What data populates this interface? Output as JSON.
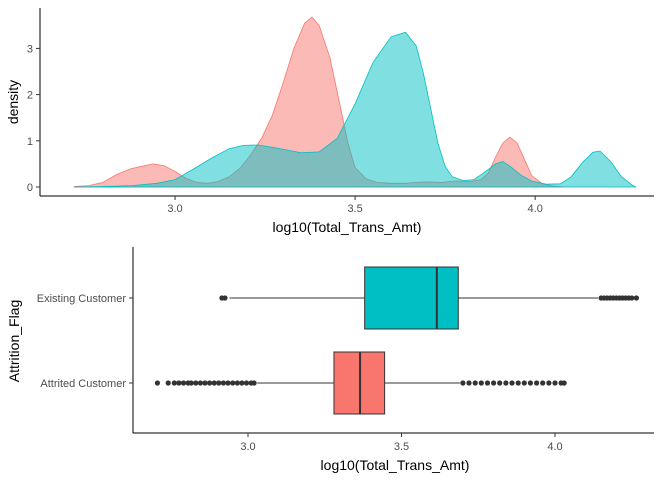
{
  "chart_data": [
    {
      "type": "area",
      "subtype": "density",
      "xlabel": "log10(Total_Trans_Amt)",
      "ylabel": "density",
      "xlim": [
        2.7,
        4.28
      ],
      "ylim": [
        0,
        3.85
      ],
      "x_ticks": [
        "3.0",
        "3.5",
        "4.0"
      ],
      "y_ticks": [
        "0",
        "1",
        "2",
        "3"
      ],
      "grid": false,
      "legend": "none",
      "series": [
        {
          "color": "#F8766D",
          "fill": "#FBB3AD",
          "points": [
            [
              2.72,
              0.01
            ],
            [
              2.76,
              0.03
            ],
            [
              2.8,
              0.1
            ],
            [
              2.84,
              0.28
            ],
            [
              2.88,
              0.4
            ],
            [
              2.91,
              0.45
            ],
            [
              2.94,
              0.5
            ],
            [
              2.97,
              0.46
            ],
            [
              3.0,
              0.34
            ],
            [
              3.03,
              0.19
            ],
            [
              3.06,
              0.1
            ],
            [
              3.09,
              0.08
            ],
            [
              3.12,
              0.12
            ],
            [
              3.15,
              0.22
            ],
            [
              3.18,
              0.4
            ],
            [
              3.21,
              0.7
            ],
            [
              3.24,
              1.05
            ],
            [
              3.27,
              1.55
            ],
            [
              3.3,
              2.25
            ],
            [
              3.33,
              3.0
            ],
            [
              3.36,
              3.55
            ],
            [
              3.38,
              3.68
            ],
            [
              3.4,
              3.5
            ],
            [
              3.43,
              2.8
            ],
            [
              3.46,
              1.7
            ],
            [
              3.48,
              0.95
            ],
            [
              3.5,
              0.42
            ],
            [
              3.53,
              0.18
            ],
            [
              3.56,
              0.1
            ],
            [
              3.6,
              0.08
            ],
            [
              3.64,
              0.08
            ],
            [
              3.67,
              0.1
            ],
            [
              3.7,
              0.11
            ],
            [
              3.74,
              0.1
            ],
            [
              3.78,
              0.13
            ],
            [
              3.82,
              0.12
            ],
            [
              3.85,
              0.16
            ],
            [
              3.87,
              0.3
            ],
            [
              3.89,
              0.65
            ],
            [
              3.91,
              0.95
            ],
            [
              3.93,
              1.08
            ],
            [
              3.95,
              0.95
            ],
            [
              3.97,
              0.6
            ],
            [
              3.99,
              0.25
            ],
            [
              4.02,
              0.07
            ],
            [
              4.05,
              0.02
            ],
            [
              4.08,
              0.0
            ]
          ]
        },
        {
          "color": "#00BFC4",
          "fill": "#7FDFE1",
          "points": [
            [
              2.72,
              0.0
            ],
            [
              2.8,
              0.01
            ],
            [
              2.88,
              0.03
            ],
            [
              2.95,
              0.08
            ],
            [
              3.0,
              0.16
            ],
            [
              3.05,
              0.38
            ],
            [
              3.1,
              0.62
            ],
            [
              3.15,
              0.83
            ],
            [
              3.19,
              0.9
            ],
            [
              3.23,
              0.91
            ],
            [
              3.27,
              0.86
            ],
            [
              3.31,
              0.8
            ],
            [
              3.35,
              0.74
            ],
            [
              3.4,
              0.76
            ],
            [
              3.45,
              1.05
            ],
            [
              3.5,
              1.8
            ],
            [
              3.55,
              2.7
            ],
            [
              3.6,
              3.25
            ],
            [
              3.64,
              3.35
            ],
            [
              3.67,
              3.05
            ],
            [
              3.69,
              2.45
            ],
            [
              3.71,
              1.7
            ],
            [
              3.73,
              0.95
            ],
            [
              3.75,
              0.45
            ],
            [
              3.77,
              0.22
            ],
            [
              3.8,
              0.14
            ],
            [
              3.83,
              0.16
            ],
            [
              3.86,
              0.32
            ],
            [
              3.89,
              0.5
            ],
            [
              3.91,
              0.55
            ],
            [
              3.93,
              0.45
            ],
            [
              3.96,
              0.26
            ],
            [
              3.99,
              0.13
            ],
            [
              4.03,
              0.06
            ],
            [
              4.07,
              0.07
            ],
            [
              4.1,
              0.22
            ],
            [
              4.13,
              0.52
            ],
            [
              4.16,
              0.75
            ],
            [
              4.18,
              0.78
            ],
            [
              4.21,
              0.55
            ],
            [
              4.24,
              0.22
            ],
            [
              4.27,
              0.04
            ],
            [
              4.28,
              0.0
            ]
          ]
        }
      ],
      "overlap_fill": "#7FB8B4"
    },
    {
      "type": "boxplot",
      "orientation": "horizontal",
      "xlabel": "log10(Total_Trans_Amt)",
      "ylabel": "Attrition_Flag",
      "xlim": [
        2.65,
        4.33
      ],
      "x_ticks": [
        "3.0",
        "3.5",
        "4.0"
      ],
      "categories": [
        "Attrited Customer",
        "Existing Customer"
      ],
      "grid": false,
      "legend": "none",
      "boxes": [
        {
          "category": "Attrited Customer",
          "color": "#F8766D",
          "whisker_low": 3.03,
          "q1": 3.28,
          "median": 3.365,
          "q3": 3.445,
          "whisker_high": 3.69,
          "outliers": [
            2.705,
            2.74,
            2.76,
            2.775,
            2.79,
            2.805,
            2.815,
            2.83,
            2.845,
            2.86,
            2.875,
            2.89,
            2.905,
            2.92,
            2.935,
            2.95,
            2.965,
            2.98,
            2.995,
            3.01,
            3.02,
            3.7,
            3.72,
            3.74,
            3.76,
            3.78,
            3.8,
            3.82,
            3.84,
            3.86,
            3.88,
            3.9,
            3.92,
            3.94,
            3.96,
            3.98,
            4.0,
            4.02,
            4.03
          ]
        },
        {
          "category": "Existing Customer",
          "color": "#00BFC4",
          "whisker_low": 2.94,
          "q1": 3.38,
          "median": 3.615,
          "q3": 3.685,
          "whisker_high": 4.14,
          "outliers": [
            2.915,
            2.925,
            4.15,
            4.16,
            4.17,
            4.18,
            4.19,
            4.2,
            4.21,
            4.22,
            4.23,
            4.24,
            4.25,
            4.265
          ]
        }
      ]
    }
  ]
}
